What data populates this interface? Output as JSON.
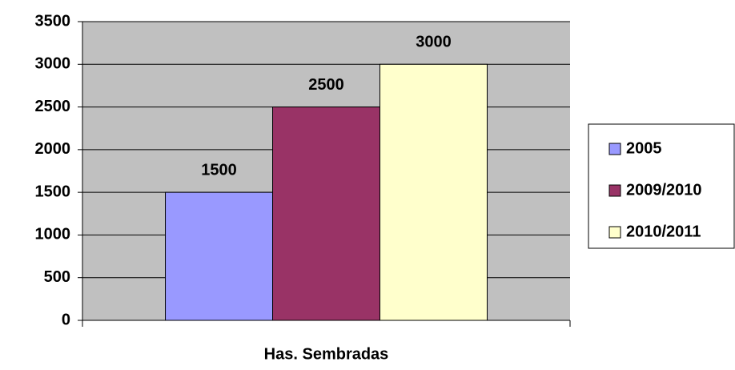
{
  "chart_data": {
    "type": "bar",
    "categories": [
      "Has. Sembradas"
    ],
    "series": [
      {
        "name": "2005",
        "color": "#9999ff",
        "values": [
          1500
        ]
      },
      {
        "name": "2009/2010",
        "color": "#993366",
        "values": [
          2500
        ]
      },
      {
        "name": "2010/2011",
        "color": "#ffffcc",
        "values": [
          3000
        ]
      }
    ],
    "ylim": [
      0,
      3500
    ],
    "yticks": [
      0,
      500,
      1000,
      1500,
      2000,
      2500,
      3000,
      3500
    ],
    "grid": true,
    "legend": "right",
    "plot_background": "#c0c0c0"
  }
}
